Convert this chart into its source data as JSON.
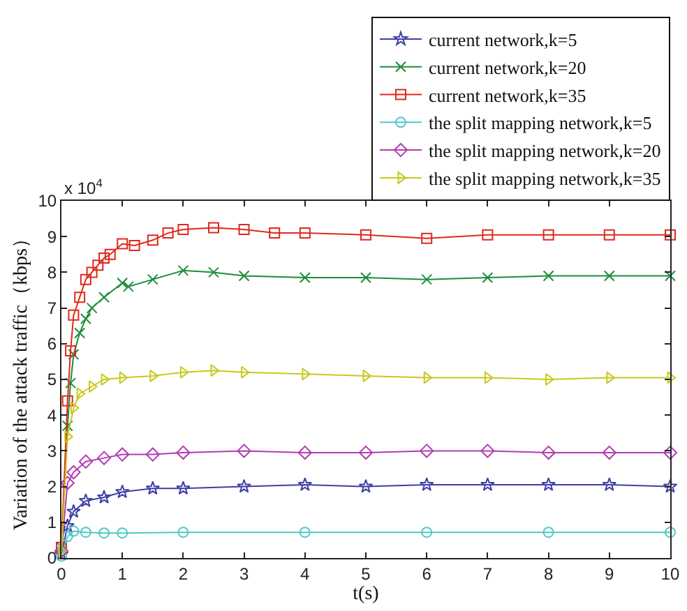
{
  "chart_data": {
    "type": "line",
    "xlabel": "t(s)",
    "ylabel": "Variation of the attack traffic（kbps）",
    "annotations": [
      "x 10$^{4}$"
    ],
    "xlim": [
      0,
      10
    ],
    "xticks": [
      0,
      1,
      2,
      3,
      4,
      5,
      6,
      7,
      8,
      9,
      10
    ],
    "ylim": [
      0,
      10
    ],
    "yticks": [
      0,
      1,
      2,
      3,
      4,
      5,
      6,
      7,
      8,
      9,
      10
    ],
    "grid": false,
    "legend": "top right",
    "series": [
      {
        "name": "current network,k=5",
        "color": "#3f3fa6",
        "marker": "star",
        "x": [
          0,
          0.1,
          0.2,
          0.4,
          0.7,
          1,
          1.5,
          2,
          3,
          4,
          5,
          6,
          7,
          8,
          9,
          10
        ],
        "values": [
          0.1,
          0.9,
          1.3,
          1.6,
          1.7,
          1.85,
          1.95,
          1.95,
          2.0,
          2.05,
          2.0,
          2.05,
          2.05,
          2.05,
          2.05,
          2.0
        ]
      },
      {
        "name": "current network,k=20",
        "color": "#1e8c3a",
        "marker": "cross",
        "x": [
          0,
          0.1,
          0.15,
          0.2,
          0.3,
          0.4,
          0.5,
          0.7,
          1,
          1.1,
          1.5,
          2,
          2.5,
          3,
          4,
          5,
          6,
          7,
          8,
          9,
          10
        ],
        "values": [
          0.3,
          3.7,
          4.9,
          5.7,
          6.3,
          6.7,
          7.0,
          7.3,
          7.7,
          7.6,
          7.8,
          8.05,
          8.0,
          7.9,
          7.85,
          7.85,
          7.8,
          7.85,
          7.9,
          7.9,
          7.9
        ]
      },
      {
        "name": "current network,k=35",
        "color": "#e0281e",
        "marker": "square",
        "x": [
          0,
          0.1,
          0.15,
          0.2,
          0.3,
          0.4,
          0.5,
          0.6,
          0.7,
          0.8,
          1,
          1.2,
          1.5,
          1.75,
          2,
          2.5,
          3,
          3.5,
          4,
          5,
          6,
          7,
          8,
          9,
          10
        ],
        "values": [
          0.3,
          4.4,
          5.8,
          6.8,
          7.3,
          7.8,
          8.0,
          8.2,
          8.4,
          8.5,
          8.8,
          8.75,
          8.9,
          9.1,
          9.2,
          9.25,
          9.2,
          9.1,
          9.1,
          9.05,
          8.95,
          9.05,
          9.05,
          9.05,
          9.05
        ]
      },
      {
        "name": "the split mapping network,k=5",
        "color": "#4fc8c8",
        "marker": "circle",
        "x": [
          0,
          0.1,
          0.2,
          0.4,
          0.7,
          1,
          2,
          4,
          6,
          8,
          10
        ],
        "values": [
          0.05,
          0.6,
          0.75,
          0.72,
          0.7,
          0.7,
          0.72,
          0.72,
          0.72,
          0.72,
          0.72
        ]
      },
      {
        "name": "the split mapping network,k=20",
        "color": "#b23cb2",
        "marker": "diamond",
        "x": [
          0,
          0.1,
          0.2,
          0.4,
          0.7,
          1,
          1.5,
          2,
          3,
          4,
          5,
          6,
          7,
          8,
          9,
          10
        ],
        "values": [
          0.2,
          2.1,
          2.4,
          2.7,
          2.8,
          2.9,
          2.9,
          2.95,
          3.0,
          2.95,
          2.95,
          3.0,
          3.0,
          2.95,
          2.95,
          2.95
        ]
      },
      {
        "name": "the split mapping network,k=35",
        "color": "#c8c81e",
        "marker": "triangle",
        "x": [
          0,
          0.1,
          0.2,
          0.3,
          0.5,
          0.7,
          1,
          1.5,
          2,
          2.5,
          3,
          4,
          5,
          6,
          7,
          8,
          9,
          10
        ],
        "values": [
          0.2,
          3.4,
          4.2,
          4.6,
          4.8,
          5.0,
          5.05,
          5.1,
          5.2,
          5.25,
          5.2,
          5.15,
          5.1,
          5.05,
          5.05,
          5.0,
          5.05,
          5.05
        ]
      }
    ]
  }
}
